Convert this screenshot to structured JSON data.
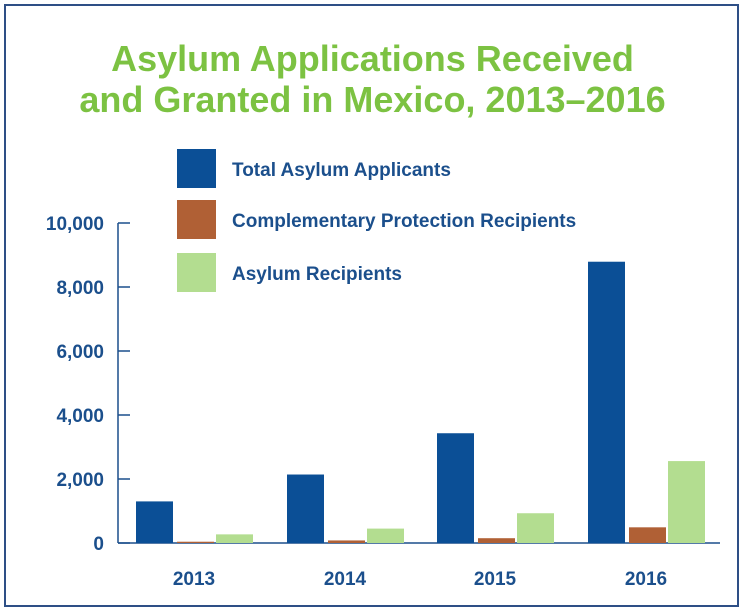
{
  "chart_data": {
    "type": "bar",
    "title_lines": [
      "Asylum Applications Received",
      "and Granted in Mexico, 2013–2016"
    ],
    "categories": [
      "2013",
      "2014",
      "2015",
      "2016"
    ],
    "series": [
      {
        "name": "Total Asylum Applicants",
        "color": "#0b4f96",
        "values": [
          1300,
          2140,
          3430,
          8790
        ]
      },
      {
        "name": "Complementary Protection Recipients",
        "color": "#b06035",
        "values": [
          40,
          80,
          150,
          490
        ]
      },
      {
        "name": "Asylum Recipients",
        "color": "#b3dd90",
        "values": [
          270,
          450,
          930,
          2560
        ]
      }
    ],
    "y_ticks": [
      "0",
      "2,000",
      "4,000",
      "6,000",
      "8,000",
      "10,000"
    ],
    "y_tick_values": [
      0,
      2000,
      4000,
      6000,
      8000,
      10000
    ],
    "ylim": [
      0,
      10000
    ],
    "legend_placement": "top-center",
    "grid": false,
    "colors": {
      "title": "#7cc242",
      "text": "#1b4f8c",
      "axis": "#1b4f8c",
      "frame": "#2e4f86"
    }
  }
}
